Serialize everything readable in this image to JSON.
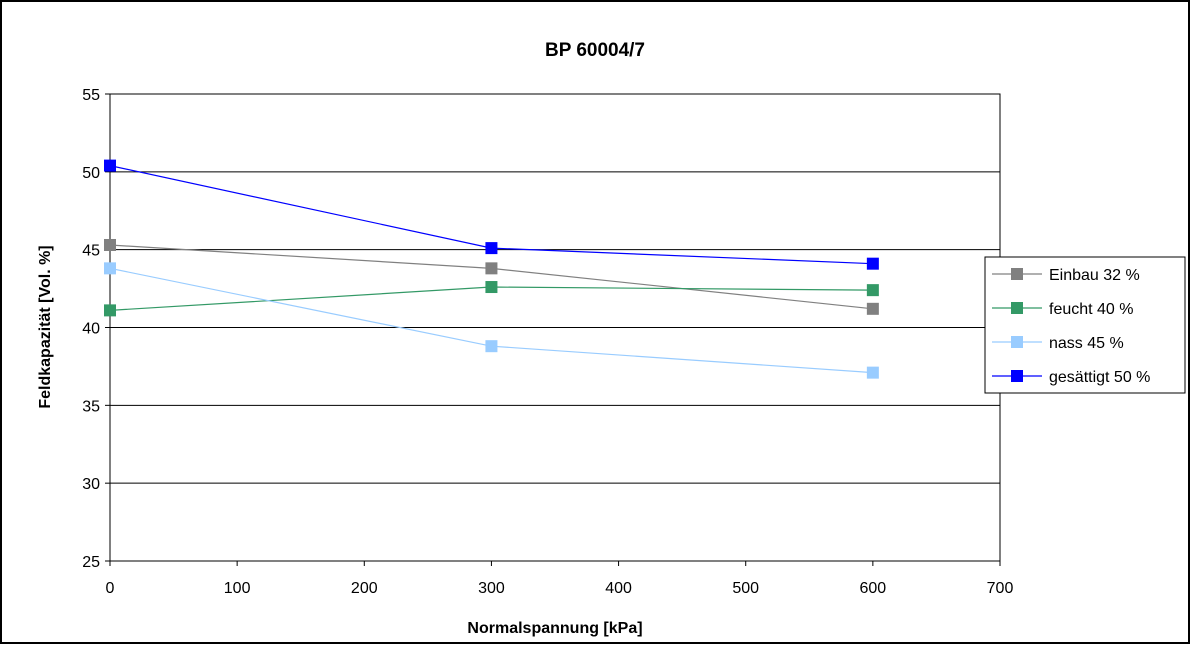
{
  "chart_data": {
    "type": "line",
    "title": "BP 60004/7",
    "xlabel": "Normalspannung [kPa]",
    "ylabel": "Feldkapazität [Vol. %]",
    "xlim": [
      0,
      700
    ],
    "ylim": [
      25,
      55
    ],
    "x_ticks": [
      0,
      100,
      200,
      300,
      400,
      500,
      600,
      700
    ],
    "y_ticks": [
      25,
      30,
      35,
      40,
      45,
      50,
      55
    ],
    "x_tick_labels": [
      "0",
      "100",
      "200",
      "300",
      "400",
      "500",
      "600",
      "700"
    ],
    "y_tick_labels": [
      "25",
      "30",
      "35",
      "40",
      "45",
      "50",
      "55"
    ],
    "grid": "horizontal",
    "legend_position": "right",
    "x": [
      0,
      300,
      600
    ],
    "series": [
      {
        "name": "Einbau 32 %",
        "values": [
          45.3,
          43.8,
          41.2
        ],
        "color": "#808080"
      },
      {
        "name": "feucht 40 %",
        "values": [
          41.1,
          42.6,
          42.4
        ],
        "color": "#339966"
      },
      {
        "name": "nass 45 %",
        "values": [
          43.8,
          38.8,
          37.1
        ],
        "color": "#99ccff"
      },
      {
        "name": "gesättigt 50 %",
        "values": [
          50.4,
          45.1,
          44.1
        ],
        "color": "#0000ff"
      }
    ]
  }
}
